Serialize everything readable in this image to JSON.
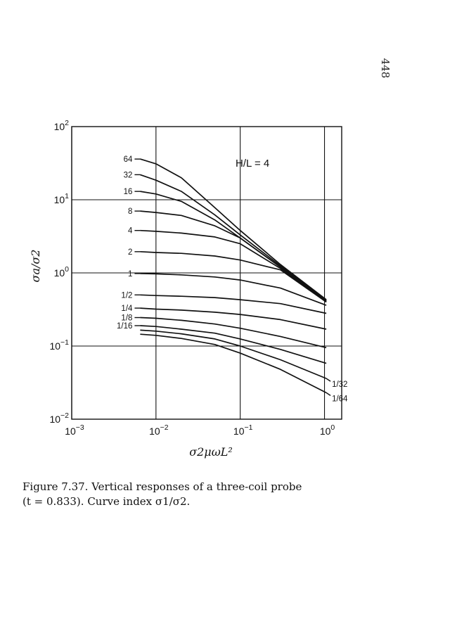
{
  "page": {
    "number": "448"
  },
  "caption": {
    "line1": "Figure 7.37. Vertical responses of a three-coil probe",
    "line2": "(t = 0.833). Curve index σ1/σ2."
  },
  "chart_data": {
    "type": "line",
    "title": "",
    "annotation": "H/L = 4",
    "xlabel": "σ2μωL²",
    "ylabel": "σa/σ2",
    "xscale": "log",
    "yscale": "log",
    "xlim": [
      0.001,
      1.6
    ],
    "ylim": [
      0.01,
      100
    ],
    "grid": true,
    "x_ticks": [
      {
        "value": 0.001,
        "base": "10",
        "exp": "−3"
      },
      {
        "value": 0.01,
        "base": "10",
        "exp": "−2"
      },
      {
        "value": 0.1,
        "base": "10",
        "exp": "−1"
      },
      {
        "value": 1,
        "base": "10",
        "exp": "0"
      }
    ],
    "y_ticks": [
      {
        "value": 0.01,
        "base": "10",
        "exp": "−2"
      },
      {
        "value": 0.1,
        "base": "10",
        "exp": "−1"
      },
      {
        "value": 1,
        "base": "10",
        "exp": "0"
      },
      {
        "value": 10,
        "base": "10",
        "exp": "1"
      },
      {
        "value": 100,
        "base": "10",
        "exp": "2"
      }
    ],
    "series": [
      {
        "name": "64",
        "label_side": "left",
        "x": [
          0.0065,
          0.01,
          0.02,
          0.05,
          0.1,
          0.3,
          1.05
        ],
        "y": [
          36,
          31,
          20,
          7.8,
          3.8,
          1.3,
          0.43
        ]
      },
      {
        "name": "32",
        "label_side": "left",
        "x": [
          0.0065,
          0.01,
          0.02,
          0.05,
          0.1,
          0.3,
          1.05
        ],
        "y": [
          22,
          18.5,
          13,
          6.2,
          3.3,
          1.25,
          0.42
        ]
      },
      {
        "name": "16",
        "label_side": "left",
        "x": [
          0.0065,
          0.01,
          0.02,
          0.05,
          0.1,
          0.3,
          1.05
        ],
        "y": [
          13,
          12,
          9.5,
          5.3,
          3.0,
          1.2,
          0.41
        ]
      },
      {
        "name": "8",
        "label_side": "left",
        "x": [
          0.0065,
          0.01,
          0.02,
          0.05,
          0.1,
          0.3,
          1.05
        ],
        "y": [
          7.0,
          6.7,
          6.1,
          4.4,
          3.0,
          1.2,
          0.41
        ]
      },
      {
        "name": "4",
        "label_side": "left",
        "x": [
          0.0065,
          0.01,
          0.02,
          0.05,
          0.1,
          0.3,
          1.05
        ],
        "y": [
          3.8,
          3.7,
          3.5,
          3.1,
          2.5,
          1.15,
          0.4
        ]
      },
      {
        "name": "2",
        "label_side": "left",
        "x": [
          0.0065,
          0.01,
          0.02,
          0.05,
          0.1,
          0.3,
          1.05
        ],
        "y": [
          1.95,
          1.9,
          1.85,
          1.7,
          1.5,
          1.1,
          0.4
        ]
      },
      {
        "name": "1",
        "label_side": "left",
        "x": [
          0.0065,
          0.01,
          0.02,
          0.05,
          0.1,
          0.3,
          1.05
        ],
        "y": [
          0.98,
          0.97,
          0.94,
          0.88,
          0.8,
          0.62,
          0.36
        ]
      },
      {
        "name": "1/2",
        "label_side": "left",
        "x": [
          0.0065,
          0.01,
          0.02,
          0.05,
          0.1,
          0.3,
          1.05
        ],
        "y": [
          0.5,
          0.49,
          0.48,
          0.46,
          0.43,
          0.38,
          0.28
        ]
      },
      {
        "name": "1/4",
        "label_side": "left",
        "x": [
          0.0065,
          0.01,
          0.02,
          0.05,
          0.1,
          0.3,
          1.05
        ],
        "y": [
          0.33,
          0.32,
          0.31,
          0.29,
          0.27,
          0.23,
          0.17
        ]
      },
      {
        "name": "1/8",
        "label_side": "left",
        "x": [
          0.0065,
          0.01,
          0.02,
          0.05,
          0.1,
          0.3,
          1.05
        ],
        "y": [
          0.245,
          0.24,
          0.225,
          0.2,
          0.175,
          0.135,
          0.095
        ]
      },
      {
        "name": "1/16",
        "label_side": "left",
        "x": [
          0.0065,
          0.01,
          0.02,
          0.05,
          0.1,
          0.3,
          1.05
        ],
        "y": [
          0.19,
          0.185,
          0.17,
          0.15,
          0.125,
          0.09,
          0.058
        ]
      },
      {
        "name": "1/32",
        "label_side": "right",
        "x": [
          0.0065,
          0.01,
          0.02,
          0.05,
          0.1,
          0.3,
          1.05
        ],
        "y": [
          0.165,
          0.16,
          0.147,
          0.125,
          0.1,
          0.065,
          0.036
        ]
      },
      {
        "name": "1/64",
        "label_side": "right",
        "x": [
          0.0065,
          0.01,
          0.02,
          0.05,
          0.1,
          0.3,
          1.05
        ],
        "y": [
          0.145,
          0.14,
          0.127,
          0.105,
          0.08,
          0.048,
          0.023
        ]
      }
    ]
  }
}
